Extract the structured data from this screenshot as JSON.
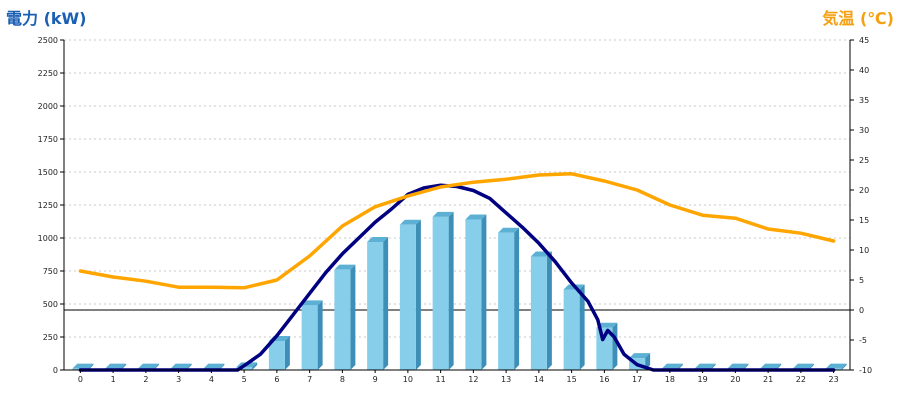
{
  "chart_data": {
    "type": "bar",
    "left_axis_title": "電力 (kW)",
    "right_axis_title": "気温 (℃)",
    "categories": [
      "0",
      "1",
      "2",
      "3",
      "4",
      "5",
      "6",
      "7",
      "8",
      "9",
      "10",
      "11",
      "12",
      "13",
      "14",
      "15",
      "16",
      "17",
      "18",
      "19",
      "20",
      "21",
      "22",
      "23"
    ],
    "left_axis": {
      "min": 0,
      "max": 2500,
      "ticks": [
        0,
        250,
        500,
        750,
        1000,
        1250,
        1500,
        1750,
        2000,
        2250,
        2500
      ]
    },
    "right_axis": {
      "min": -10,
      "max": 45,
      "ticks": [
        -10,
        -5,
        0,
        5,
        10,
        15,
        20,
        25,
        30,
        35,
        40,
        45
      ]
    },
    "grid": true,
    "series": [
      {
        "kind": "bar",
        "axis": "left",
        "color": "#87ceeb",
        "values": [
          10,
          10,
          10,
          10,
          10,
          20,
          220,
          490,
          760,
          970,
          1100,
          1160,
          1140,
          1040,
          860,
          610,
          320,
          90,
          10,
          10,
          10,
          10,
          10,
          10
        ]
      },
      {
        "kind": "line",
        "axis": "left",
        "color": "#000080",
        "points": [
          [
            0,
            0
          ],
          [
            4.8,
            0
          ],
          [
            5.1,
            50
          ],
          [
            5.5,
            120
          ],
          [
            6,
            260
          ],
          [
            6.5,
            420
          ],
          [
            7,
            580
          ],
          [
            7.5,
            740
          ],
          [
            8,
            880
          ],
          [
            8.5,
            1000
          ],
          [
            9,
            1120
          ],
          [
            9.5,
            1220
          ],
          [
            10,
            1330
          ],
          [
            10.5,
            1380
          ],
          [
            11,
            1400
          ],
          [
            11.5,
            1390
          ],
          [
            12,
            1360
          ],
          [
            12.5,
            1300
          ],
          [
            13,
            1190
          ],
          [
            13.5,
            1080
          ],
          [
            14,
            960
          ],
          [
            14.5,
            820
          ],
          [
            15,
            660
          ],
          [
            15.5,
            520
          ],
          [
            15.8,
            380
          ],
          [
            15.95,
            230
          ],
          [
            16.1,
            300
          ],
          [
            16.3,
            250
          ],
          [
            16.6,
            120
          ],
          [
            17,
            40
          ],
          [
            17.5,
            0
          ],
          [
            23,
            0
          ]
        ]
      },
      {
        "kind": "line",
        "axis": "right",
        "color": "#ffa500",
        "values": [
          6.5,
          5.5,
          4.8,
          3.8,
          3.8,
          3.7,
          5.0,
          9.0,
          14.0,
          17.2,
          19.0,
          20.5,
          21.3,
          21.8,
          22.5,
          22.7,
          21.5,
          20.0,
          17.5,
          15.8,
          15.3,
          13.5,
          12.8,
          11.5
        ]
      }
    ]
  }
}
